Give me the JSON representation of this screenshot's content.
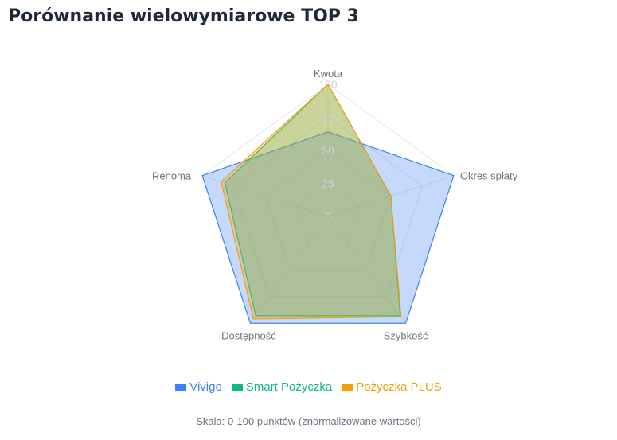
{
  "title": "Porównanie wielowymiarowe TOP 3",
  "note": "Skala: 0-100 punktów (znormalizowane wartości)",
  "colors": {
    "grid": "#e5e7eb",
    "axis_label": "#6b7280",
    "tick": "#cfd3d8"
  },
  "chart_data": {
    "type": "radar",
    "axes": [
      "Kwota",
      "Okres spłaty",
      "Szybkość",
      "Dostępność",
      "Renoma"
    ],
    "rlim": [
      0,
      100
    ],
    "ticks": [
      "0",
      "25",
      "50",
      "75",
      "100"
    ],
    "tick_values": [
      0,
      25,
      50,
      75,
      100
    ],
    "grid": true,
    "legend_position": "bottom",
    "series": [
      {
        "name": "Vivigo",
        "color": "#3b82f6",
        "fill": "rgba(59,130,246,0.30)",
        "values": [
          64,
          100,
          100,
          100,
          100
        ]
      },
      {
        "name": "Smart Pożyczka",
        "color": "#10b981",
        "fill": "rgba(16,185,129,0.30)",
        "values": [
          100,
          50,
          93,
          93,
          82
        ]
      },
      {
        "name": "Pożyczka PLUS",
        "color": "#f59e0b",
        "fill": "rgba(245,158,11,0.30)",
        "values": [
          100,
          50,
          94,
          96,
          85
        ]
      }
    ]
  }
}
